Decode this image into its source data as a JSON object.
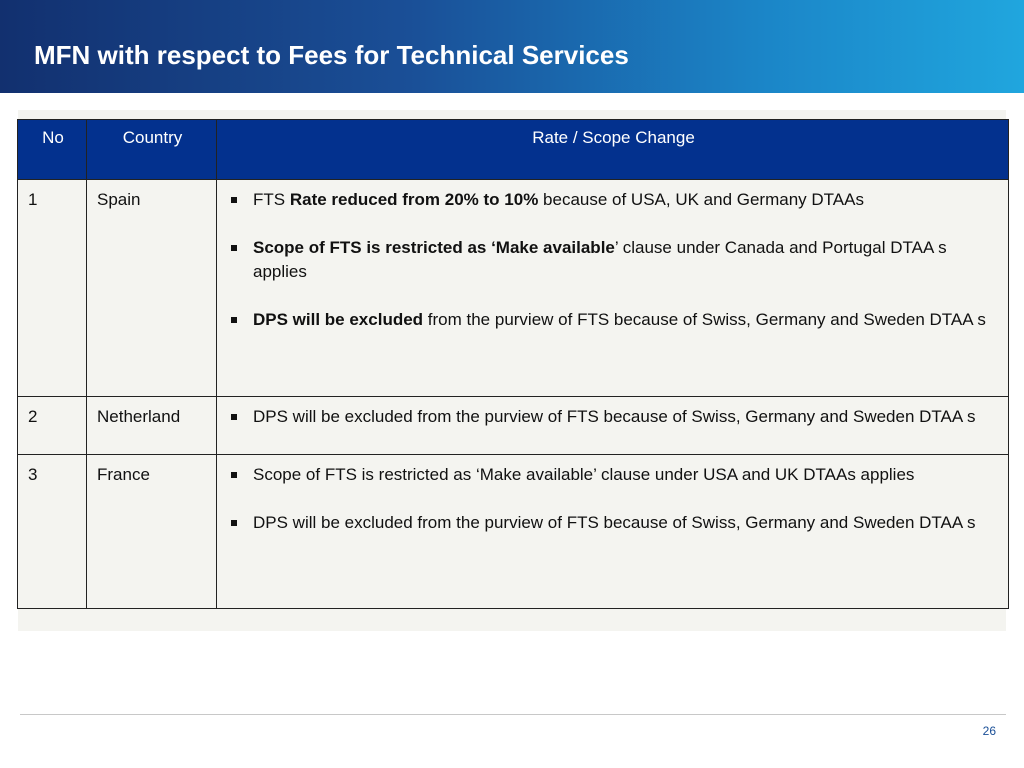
{
  "slide": {
    "title": "MFN with respect to Fees for Technical Services",
    "page_number": "26"
  },
  "table": {
    "headers": [
      "No",
      "Country",
      "Rate / Scope Change"
    ],
    "rows": [
      {
        "no": "1",
        "country": "Spain",
        "bullets": [
          {
            "pre": "FTS ",
            "bold": "Rate reduced from 20% to 10%",
            "post": " because of USA, UK and Germany DTAAs"
          },
          {
            "pre": "",
            "bold": "Scope of FTS is restricted as ‘Make available",
            "post": "’ clause under Canada and Portugal DTAA s applies"
          },
          {
            "pre": "",
            "bold": "DPS will be excluded",
            "post": " from the purview of FTS because of Swiss, Germany and Sweden DTAA s"
          }
        ]
      },
      {
        "no": "2",
        "country": "Netherland",
        "bullets": [
          {
            "pre": "DPS will be excluded from the purview of FTS because of Swiss, Germany and Sweden DTAA s",
            "bold": "",
            "post": ""
          }
        ]
      },
      {
        "no": "3",
        "country": "France",
        "bullets": [
          {
            "pre": "Scope of FTS is restricted as ‘Make available’ clause under USA and UK DTAAs applies",
            "bold": "",
            "post": ""
          },
          {
            "pre": "DPS will be excluded from the purview of FTS because of Swiss, Germany and Sweden DTAA s",
            "bold": "",
            "post": ""
          }
        ]
      }
    ]
  }
}
